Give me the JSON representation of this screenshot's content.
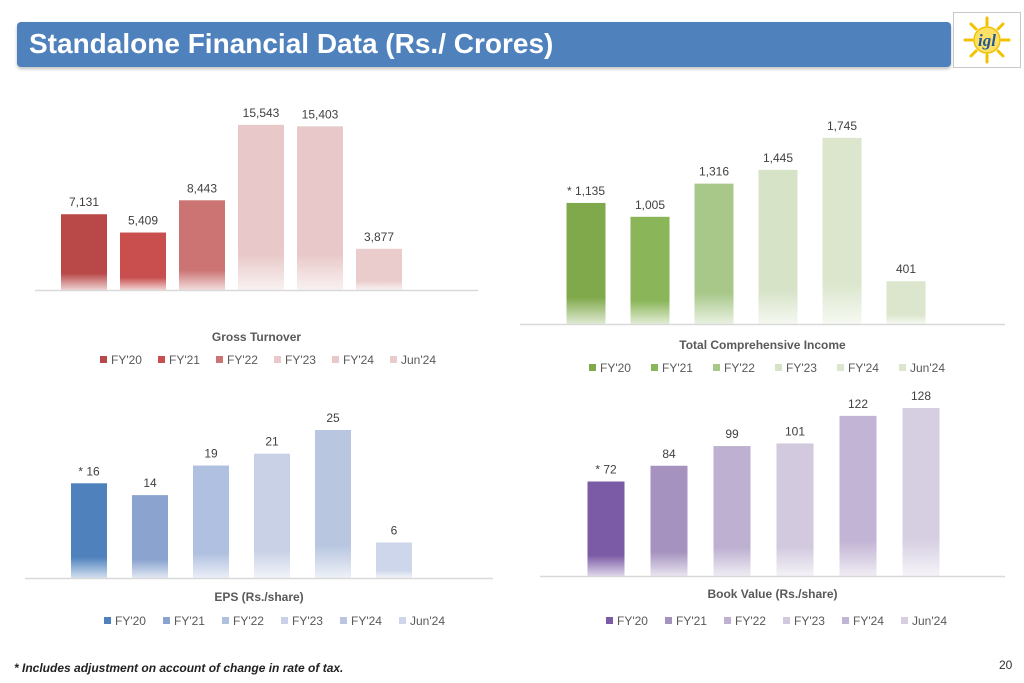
{
  "header": {
    "title": "Standalone Financial Data (Rs./ Crores)",
    "logo_text": "igl"
  },
  "footer": {
    "footnote": "* Includes adjustment on account of change in rate of tax.",
    "page_number": "20"
  },
  "chart_data": [
    {
      "id": "gross",
      "type": "bar",
      "title": "Gross Turnover",
      "categories": [
        "FY'20",
        "FY'21",
        "FY'22",
        "FY'23",
        "FY'24",
        "Jun'24"
      ],
      "values": [
        7131,
        5409,
        8443,
        15543,
        15403,
        3877
      ],
      "data_labels": [
        "7,131",
        "5,409",
        "8,443",
        "15,543",
        "15,403",
        "3,877"
      ],
      "colors": [
        "#b94848",
        "#c94f4f",
        "#cc7474",
        "#e8c8c8",
        "#e8c8c8",
        "#eacccc"
      ],
      "ylim": [
        0,
        16000
      ],
      "legend": "bottom"
    },
    {
      "id": "tci",
      "type": "bar",
      "title": "Total Comprehensive Income",
      "categories": [
        "FY'20",
        "FY'21",
        "FY'22",
        "FY'23",
        "FY'24",
        "Jun'24"
      ],
      "values": [
        1135,
        1005,
        1316,
        1445,
        1745,
        401
      ],
      "data_labels": [
        "* 1,135",
        "1,005",
        "1,316",
        "1,445",
        "1,745",
        "401"
      ],
      "colors": [
        "#80a94b",
        "#8ab558",
        "#a8c88a",
        "#d7e3c7",
        "#dbe6cc",
        "#dbe6cc"
      ],
      "ylim": [
        0,
        1800
      ],
      "legend": "bottom"
    },
    {
      "id": "eps",
      "type": "bar",
      "title": "EPS (Rs./share)",
      "categories": [
        "FY'20",
        "FY'21",
        "FY'22",
        "FY'23",
        "FY'24",
        "Jun'24"
      ],
      "values": [
        16,
        14,
        19,
        21,
        25,
        6
      ],
      "data_labels": [
        "* 16",
        "14",
        "19",
        "21",
        "25",
        "6"
      ],
      "colors": [
        "#4f81bd",
        "#8aa4cf",
        "#b0c0e0",
        "#c8d1e6",
        "#b8c6e0",
        "#cdd6ea"
      ],
      "ylim": [
        0,
        25
      ],
      "legend": "bottom"
    },
    {
      "id": "bv",
      "type": "bar",
      "title": "Book Value (Rs./share)",
      "categories": [
        "FY'20",
        "FY'21",
        "FY'22",
        "FY'23",
        "FY'24",
        "Jun'24"
      ],
      "values": [
        72,
        84,
        99,
        101,
        122,
        128
      ],
      "data_labels": [
        "* 72",
        "84",
        "99",
        "101",
        "122",
        "128"
      ],
      "colors": [
        "#7b5aa6",
        "#a592bf",
        "#bdb0d1",
        "#d2c9df",
        "#c2b4d4",
        "#d6cfe2"
      ],
      "ylim": [
        0,
        128
      ],
      "legend": "bottom"
    }
  ]
}
